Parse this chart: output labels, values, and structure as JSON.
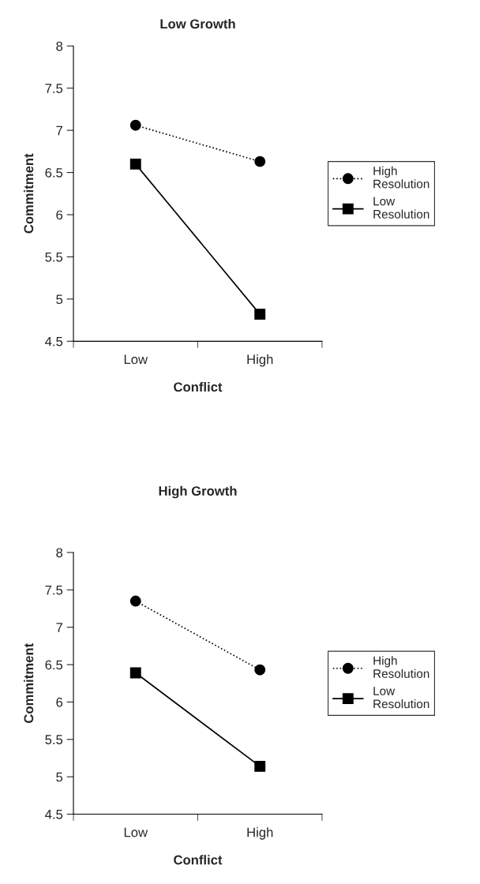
{
  "chart_data": [
    {
      "type": "line",
      "title": "Low Growth",
      "xlabel": "Conflict",
      "ylabel": "Commitment",
      "categories": [
        "Low",
        "High"
      ],
      "ylim": [
        4.5,
        8
      ],
      "yticks": [
        4.5,
        5,
        5.5,
        6,
        6.5,
        7,
        7.5,
        8
      ],
      "grid": false,
      "legend": "right",
      "series": [
        {
          "name": "High Resolution",
          "color": "#000000",
          "values": [
            7.06,
            6.63
          ],
          "marker": "circle",
          "line_style": "dotted"
        },
        {
          "name": "Low Resolution",
          "color": "#000000",
          "values": [
            6.6,
            4.82
          ],
          "marker": "square",
          "line_style": "solid"
        }
      ]
    },
    {
      "type": "line",
      "title": "High Growth",
      "xlabel": "Conflict",
      "ylabel": "Commitment",
      "categories": [
        "Low",
        "High"
      ],
      "ylim": [
        4.5,
        8
      ],
      "yticks": [
        4.5,
        5,
        5.5,
        6,
        6.5,
        7,
        7.5,
        8
      ],
      "grid": false,
      "legend": "right",
      "series": [
        {
          "name": "High Resolution",
          "color": "#000000",
          "values": [
            7.35,
            6.43
          ],
          "marker": "circle",
          "line_style": "dotted"
        },
        {
          "name": "Low Resolution",
          "color": "#000000",
          "values": [
            6.39,
            5.14
          ],
          "marker": "square",
          "line_style": "solid"
        }
      ]
    }
  ]
}
